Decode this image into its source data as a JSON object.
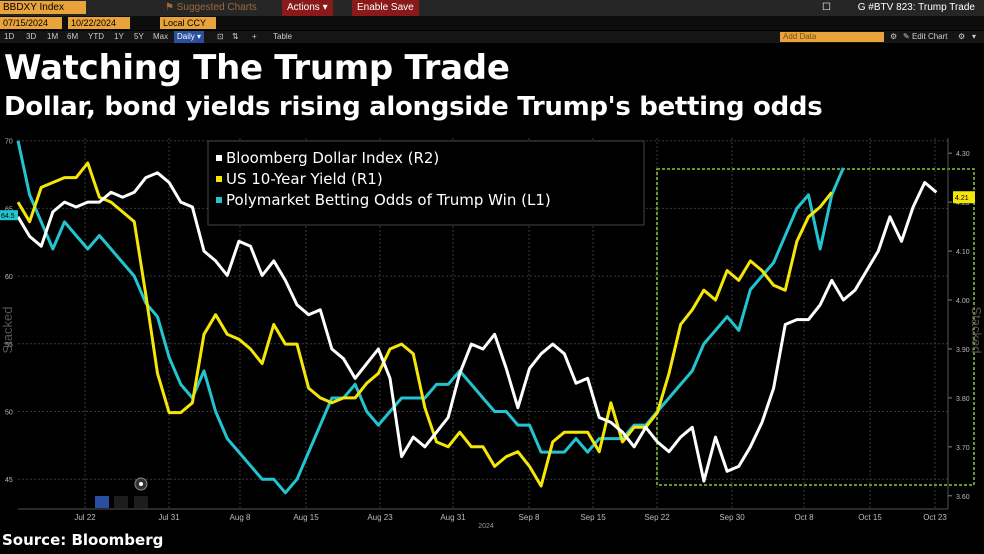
{
  "toolbar": {
    "ticker": "BBDXY Index",
    "start_date": "07/15/2024",
    "end_date": "10/22/2024",
    "currency": "Local CCY",
    "suggested": "Suggested Charts",
    "actions": "Actions",
    "enable_save": "Enable Save",
    "window_title": "G #BTV 823: Trump Trade",
    "ranges": [
      "1D",
      "3D",
      "1M",
      "6M",
      "YTD",
      "1Y",
      "5Y",
      "Max"
    ],
    "frequency": "Daily",
    "table_label": "Table",
    "add_data": "Add Data",
    "edit_chart": "Edit Chart"
  },
  "header": {
    "title": "Watching The Trump Trade",
    "subtitle": "Dollar, bond yields rising alongside Trump's betting odds"
  },
  "footer": {
    "source": "Source: Bloomberg"
  },
  "colors": {
    "dollar": "#ffffff",
    "yield": "#f5e60a",
    "odds": "#22c4cf",
    "highlight": "#8bc53f",
    "background": "#000000"
  },
  "chart_data": {
    "type": "line",
    "x_ticks": [
      "Jul 22",
      "Jul 31",
      "Aug 8",
      "Aug 15",
      "Aug 23",
      "Aug 31",
      "Sep 8",
      "Sep 15",
      "Sep 22",
      "Sep 30",
      "Oct 8",
      "Oct 15",
      "Oct 23"
    ],
    "x_year_label": "2024",
    "left_axis": {
      "label": "Stacked",
      "ticks": [
        45,
        50,
        55,
        60,
        65,
        70
      ],
      "range": [
        42.8,
        70.2
      ]
    },
    "right_axis": {
      "label": "Stacked",
      "ticks": [
        "3.60",
        "3.70",
        "3.80",
        "3.90",
        "4.00",
        "4.10",
        "4.20",
        "4.30"
      ],
      "range": [
        3.573,
        4.331
      ]
    },
    "left_badge": "64.5",
    "right_badge": "4.21",
    "highlight_box": {
      "from": "Sep 22",
      "to": "Oct 25"
    },
    "legend": [
      {
        "name": "Bloomberg Dollar Index  (R2)",
        "color": "#ffffff"
      },
      {
        "name": "US 10-Year Yield (R1)",
        "color": "#f5e60a"
      },
      {
        "name": "Polymarket Betting Odds of Trump Win (L1)",
        "color": "#22c4cf"
      }
    ],
    "series": [
      {
        "name": "Bloomberg Dollar Index  (R2)",
        "axis": "R",
        "values": [
          [
            0,
            4.17
          ],
          [
            1,
            4.13
          ],
          [
            2,
            4.11
          ],
          [
            3,
            4.18
          ],
          [
            4,
            4.2
          ],
          [
            5,
            4.19
          ],
          [
            6,
            4.2
          ],
          [
            7,
            4.2
          ],
          [
            8,
            4.22
          ],
          [
            9,
            4.21
          ],
          [
            10,
            4.22
          ],
          [
            11,
            4.25
          ],
          [
            12,
            4.26
          ],
          [
            13,
            4.24
          ],
          [
            14,
            4.2
          ],
          [
            15,
            4.19
          ],
          [
            16,
            4.1
          ],
          [
            17,
            4.08
          ],
          [
            18,
            4.05
          ],
          [
            19,
            4.12
          ],
          [
            20,
            4.11
          ],
          [
            21,
            4.05
          ],
          [
            22,
            4.08
          ],
          [
            23,
            4.04
          ],
          [
            24,
            3.99
          ],
          [
            25,
            3.97
          ],
          [
            26,
            3.98
          ],
          [
            27,
            3.9
          ],
          [
            28,
            3.88
          ],
          [
            29,
            3.84
          ],
          [
            30,
            3.87
          ],
          [
            31,
            3.9
          ],
          [
            32,
            3.84
          ],
          [
            33,
            3.68
          ],
          [
            34,
            3.72
          ],
          [
            35,
            3.7
          ],
          [
            36,
            3.73
          ],
          [
            37,
            3.76
          ],
          [
            38,
            3.85
          ],
          [
            39,
            3.91
          ],
          [
            40,
            3.9
          ],
          [
            41,
            3.93
          ],
          [
            42,
            3.86
          ],
          [
            43,
            3.78
          ],
          [
            44,
            3.86
          ],
          [
            45,
            3.89
          ],
          [
            46,
            3.91
          ],
          [
            47,
            3.89
          ],
          [
            48,
            3.83
          ],
          [
            49,
            3.84
          ],
          [
            50,
            3.76
          ],
          [
            51,
            3.75
          ],
          [
            52,
            3.73
          ],
          [
            53,
            3.7
          ],
          [
            54,
            3.74
          ],
          [
            55,
            3.71
          ],
          [
            56,
            3.69
          ],
          [
            57,
            3.72
          ],
          [
            58,
            3.74
          ],
          [
            59,
            3.63
          ],
          [
            60,
            3.72
          ],
          [
            61,
            3.65
          ],
          [
            62,
            3.66
          ],
          [
            63,
            3.7
          ],
          [
            64,
            3.75
          ],
          [
            65,
            3.82
          ],
          [
            66,
            3.95
          ],
          [
            67,
            3.96
          ],
          [
            68,
            3.96
          ],
          [
            69,
            3.99
          ],
          [
            70,
            4.04
          ],
          [
            71,
            4.0
          ],
          [
            72,
            4.02
          ],
          [
            73,
            4.06
          ],
          [
            74,
            4.1
          ],
          [
            75,
            4.17
          ],
          [
            76,
            4.12
          ],
          [
            77,
            4.19
          ],
          [
            78,
            4.24
          ],
          [
            79,
            4.22
          ]
        ]
      },
      {
        "name": "US 10-Year Yield (R1)",
        "axis": "R",
        "values": [
          [
            0,
            4.2
          ],
          [
            1,
            4.16
          ],
          [
            2,
            4.23
          ],
          [
            3,
            4.24
          ],
          [
            4,
            4.25
          ],
          [
            5,
            4.25
          ],
          [
            6,
            4.28
          ],
          [
            7,
            4.21
          ],
          [
            8,
            4.2
          ],
          [
            9,
            4.18
          ],
          [
            10,
            4.16
          ],
          [
            11,
            4.01
          ],
          [
            12,
            3.85
          ],
          [
            13,
            3.77
          ],
          [
            14,
            3.77
          ],
          [
            15,
            3.79
          ],
          [
            16,
            3.93
          ],
          [
            17,
            3.97
          ],
          [
            18,
            3.93
          ],
          [
            19,
            3.92
          ],
          [
            20,
            3.9
          ],
          [
            21,
            3.87
          ],
          [
            22,
            3.95
          ],
          [
            23,
            3.91
          ],
          [
            24,
            3.91
          ],
          [
            25,
            3.82
          ],
          [
            26,
            3.8
          ],
          [
            27,
            3.79
          ],
          [
            28,
            3.8
          ],
          [
            29,
            3.8
          ],
          [
            30,
            3.83
          ],
          [
            31,
            3.85
          ],
          [
            32,
            3.9
          ],
          [
            33,
            3.91
          ],
          [
            34,
            3.89
          ],
          [
            35,
            3.78
          ],
          [
            36,
            3.71
          ],
          [
            37,
            3.7
          ],
          [
            38,
            3.73
          ],
          [
            39,
            3.7
          ],
          [
            40,
            3.7
          ],
          [
            41,
            3.66
          ],
          [
            42,
            3.68
          ],
          [
            43,
            3.69
          ],
          [
            44,
            3.66
          ],
          [
            45,
            3.62
          ],
          [
            46,
            3.71
          ],
          [
            47,
            3.73
          ],
          [
            48,
            3.73
          ],
          [
            49,
            3.73
          ],
          [
            50,
            3.69
          ],
          [
            51,
            3.79
          ],
          [
            52,
            3.71
          ],
          [
            53,
            3.74
          ],
          [
            54,
            3.74
          ],
          [
            55,
            3.77
          ],
          [
            56,
            3.85
          ],
          [
            57,
            3.95
          ],
          [
            58,
            3.98
          ],
          [
            59,
            4.02
          ],
          [
            60,
            4.0
          ],
          [
            61,
            4.06
          ],
          [
            62,
            4.04
          ],
          [
            63,
            4.08
          ],
          [
            64,
            4.06
          ],
          [
            65,
            4.03
          ],
          [
            66,
            4.02
          ],
          [
            67,
            4.12
          ],
          [
            68,
            4.17
          ],
          [
            69,
            4.19
          ],
          [
            70,
            4.22
          ]
        ]
      },
      {
        "name": "Polymarket Betting Odds of Trump Win (L1)",
        "axis": "L",
        "values": [
          [
            0,
            70
          ],
          [
            1,
            66
          ],
          [
            2,
            64
          ],
          [
            3,
            62
          ],
          [
            4,
            64
          ],
          [
            5,
            63
          ],
          [
            6,
            62
          ],
          [
            7,
            63
          ],
          [
            8,
            62
          ],
          [
            9,
            61
          ],
          [
            10,
            60
          ],
          [
            11,
            58
          ],
          [
            12,
            57
          ],
          [
            13,
            54
          ],
          [
            14,
            52
          ],
          [
            15,
            51
          ],
          [
            16,
            53
          ],
          [
            17,
            50
          ],
          [
            18,
            48
          ],
          [
            19,
            47
          ],
          [
            20,
            46
          ],
          [
            21,
            45
          ],
          [
            22,
            45
          ],
          [
            23,
            44
          ],
          [
            24,
            45
          ],
          [
            25,
            47
          ],
          [
            26,
            49
          ],
          [
            27,
            51
          ],
          [
            28,
            51
          ],
          [
            29,
            52
          ],
          [
            30,
            50
          ],
          [
            31,
            49
          ],
          [
            32,
            50
          ],
          [
            33,
            51
          ],
          [
            34,
            51
          ],
          [
            35,
            51
          ],
          [
            36,
            52
          ],
          [
            37,
            52
          ],
          [
            38,
            53
          ],
          [
            39,
            52
          ],
          [
            40,
            51
          ],
          [
            41,
            50
          ],
          [
            42,
            50
          ],
          [
            43,
            49
          ],
          [
            44,
            49
          ],
          [
            45,
            47
          ],
          [
            46,
            47
          ],
          [
            47,
            47
          ],
          [
            48,
            48
          ],
          [
            49,
            47
          ],
          [
            50,
            48
          ],
          [
            51,
            48
          ],
          [
            52,
            48
          ],
          [
            53,
            49
          ],
          [
            54,
            49
          ],
          [
            55,
            50
          ],
          [
            56,
            51
          ],
          [
            57,
            52
          ],
          [
            58,
            53
          ],
          [
            59,
            55
          ],
          [
            60,
            56
          ],
          [
            61,
            57
          ],
          [
            62,
            56
          ],
          [
            63,
            59
          ],
          [
            64,
            60
          ],
          [
            65,
            61
          ],
          [
            66,
            63
          ],
          [
            67,
            65
          ],
          [
            68,
            66
          ],
          [
            69,
            62
          ],
          [
            70,
            66
          ],
          [
            71,
            68
          ]
        ]
      }
    ]
  }
}
